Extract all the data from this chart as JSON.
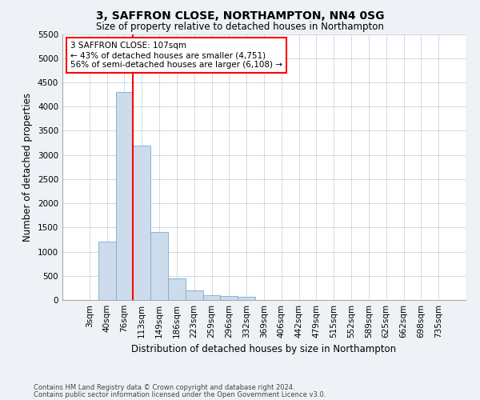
{
  "title": "3, SAFFRON CLOSE, NORTHAMPTON, NN4 0SG",
  "subtitle": "Size of property relative to detached houses in Northampton",
  "xlabel": "Distribution of detached houses by size in Northampton",
  "ylabel": "Number of detached properties",
  "bar_labels": [
    "3sqm",
    "40sqm",
    "76sqm",
    "113sqm",
    "149sqm",
    "186sqm",
    "223sqm",
    "259sqm",
    "296sqm",
    "332sqm",
    "369sqm",
    "406sqm",
    "442sqm",
    "479sqm",
    "515sqm",
    "552sqm",
    "589sqm",
    "625sqm",
    "662sqm",
    "698sqm",
    "735sqm"
  ],
  "bar_values": [
    0,
    1200,
    4300,
    3200,
    1400,
    450,
    200,
    100,
    80,
    70,
    0,
    0,
    0,
    0,
    0,
    0,
    0,
    0,
    0,
    0,
    0
  ],
  "bar_color": "#ccdcec",
  "bar_edge_color": "#7aaacc",
  "vline_color": "red",
  "vline_x": 2.5,
  "annotation_line1": "3 SAFFRON CLOSE: 107sqm",
  "annotation_line2": "← 43% of detached houses are smaller (4,751)",
  "annotation_line3": "56% of semi-detached houses are larger (6,108) →",
  "annotation_box_color": "white",
  "annotation_box_edge": "red",
  "ylim": [
    0,
    5500
  ],
  "yticks": [
    0,
    500,
    1000,
    1500,
    2000,
    2500,
    3000,
    3500,
    4000,
    4500,
    5000,
    5500
  ],
  "footer1": "Contains HM Land Registry data © Crown copyright and database right 2024.",
  "footer2": "Contains public sector information licensed under the Open Government Licence v3.0.",
  "bg_color": "#eef2f7",
  "plot_bg_color": "white",
  "grid_color": "#c8d4e0",
  "title_fontsize": 10,
  "subtitle_fontsize": 8.5,
  "xlabel_fontsize": 8.5,
  "ylabel_fontsize": 8.5,
  "tick_fontsize": 7.5,
  "annotation_fontsize": 7.5,
  "footer_fontsize": 6
}
